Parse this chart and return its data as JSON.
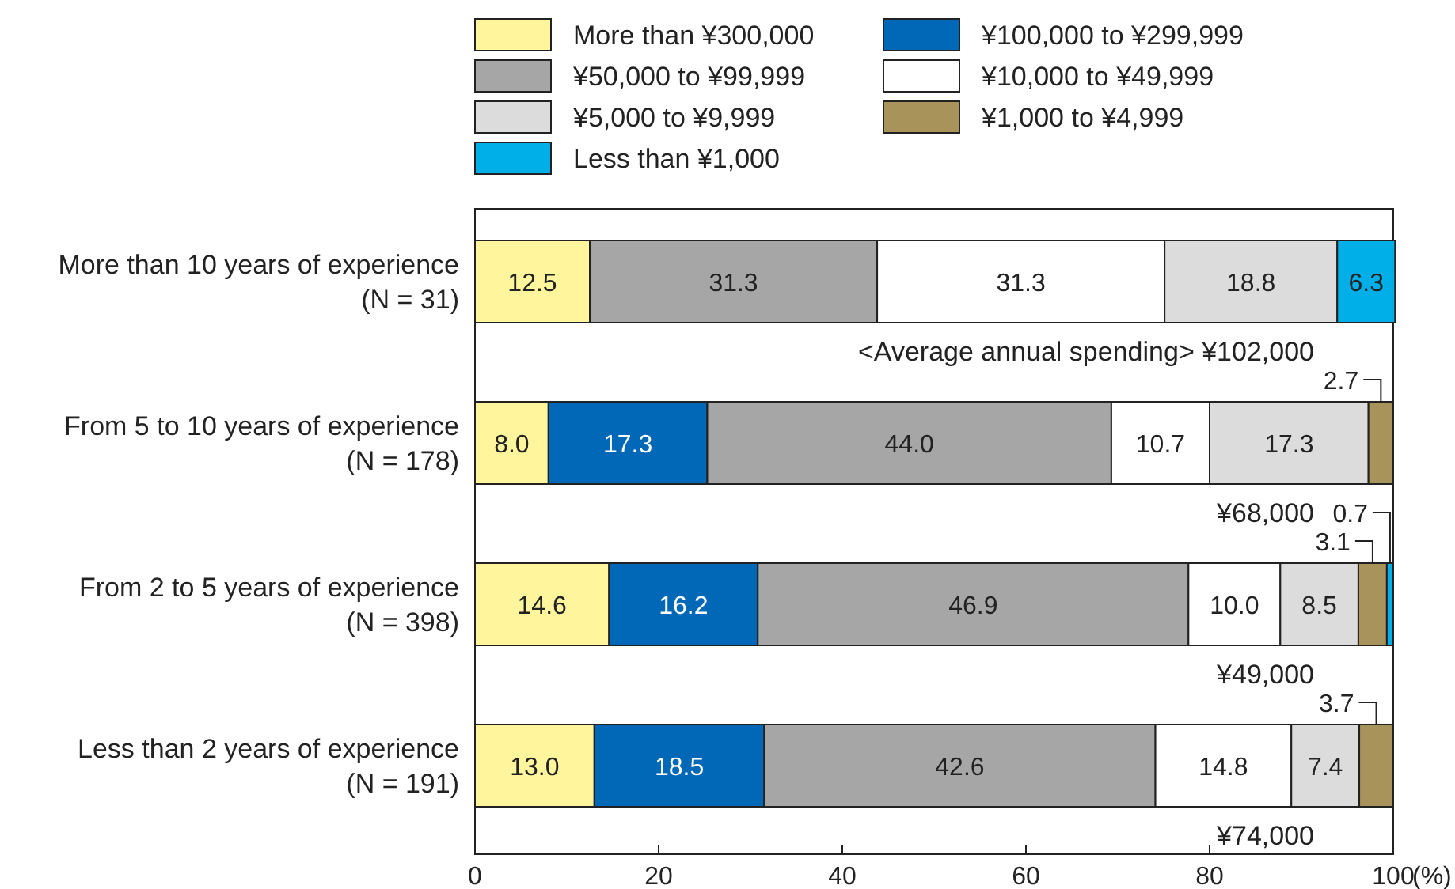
{
  "chart_data": {
    "type": "bar",
    "orientation": "horizontal",
    "stacked": true,
    "grid": false,
    "legend": "top",
    "categories": [
      "More than 10 years of experience\n(N = 31)",
      "From 5 to 10 years of experience\n(N = 178)",
      "From 2 to 5 years of experience\n(N = 398)",
      "Less than 2 years of experience\n(N = 191)"
    ],
    "series": [
      {
        "name": "More than ¥300,000",
        "color": "#fff59d",
        "values": [
          12.5,
          8.0,
          14.6,
          13.0
        ],
        "value_labels": [
          "12.5",
          "8.0",
          "14.6",
          "13.0"
        ]
      },
      {
        "name": "¥100,000 to ¥299,999",
        "color": "#0068b7",
        "values": [
          null,
          17.3,
          16.2,
          18.5
        ],
        "value_labels": [
          null,
          "17.3",
          "16.2",
          "18.5"
        ]
      },
      {
        "name": "¥50,000 to ¥99,999",
        "color": "#a6a6a6",
        "values": [
          31.3,
          44.0,
          46.9,
          42.6
        ],
        "value_labels": [
          "31.3",
          "44.0",
          "46.9",
          "42.6"
        ]
      },
      {
        "name": "¥10,000 to ¥49,999",
        "color": "#ffffff",
        "values": [
          31.3,
          10.7,
          10.0,
          14.8
        ],
        "value_labels": [
          "31.3",
          "10.7",
          "10.0",
          "14.8"
        ]
      },
      {
        "name": "¥5,000 to ¥9,999",
        "color": "#dcdcdc",
        "values": [
          18.8,
          17.3,
          8.5,
          7.4
        ],
        "value_labels": [
          "18.8",
          "17.3",
          "8.5",
          "7.4"
        ]
      },
      {
        "name": "¥1,000 to ¥4,999",
        "color": "#a8935a",
        "values": [
          null,
          2.7,
          3.1,
          3.7
        ],
        "value_labels": [
          null,
          "2.7",
          "3.1",
          "3.7"
        ]
      },
      {
        "name": "Less than ¥1,000",
        "color": "#00aee8",
        "values": [
          6.3,
          null,
          0.7,
          null
        ],
        "value_labels": [
          "6.3",
          null,
          "0.7",
          null
        ]
      }
    ],
    "xlim": [
      0,
      100
    ],
    "xticks": [
      0,
      20,
      40,
      60,
      80,
      100
    ],
    "xlabel": "(%)",
    "annotations": [
      "<Average annual spending> ¥102,000",
      "¥68,000",
      "¥49,000",
      "¥74,000"
    ]
  }
}
